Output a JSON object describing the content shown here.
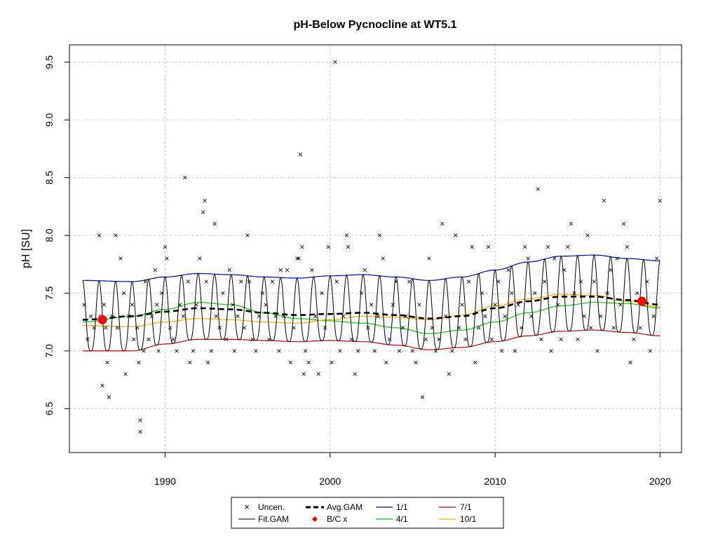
{
  "chart_data": {
    "type": "line",
    "title": "pH-Below Pycnocline at WT5.1",
    "xlabel": "",
    "ylabel": "pH [SU]",
    "xlim": [
      1984.2,
      2021.3
    ],
    "ylim": [
      6.12,
      9.65
    ],
    "x_ticks": [
      1990,
      2000,
      2010,
      2020
    ],
    "x_tick_labels": [
      "1990",
      "2000",
      "2010",
      "2020"
    ],
    "y_ticks": [
      6.5,
      7.0,
      7.5,
      8.0,
      8.5,
      9.0,
      9.5
    ],
    "y_tick_labels": [
      "6.5",
      "7.0",
      "7.5",
      "8.0",
      "8.5",
      "9.0",
      "9.5"
    ],
    "grid": true,
    "legend_position": "bottom-center",
    "colors": {
      "uncen": "#4f5f7f",
      "fit": "#000000",
      "avg": "#000000",
      "bc": "#ff0000",
      "d1": "#0000cd",
      "d4": "#00cd00",
      "d7": "#cd0000",
      "d10": "#ffa500"
    },
    "legend": {
      "uncen": "Uncen.",
      "fit": "Fit.GAM",
      "avg": "Avg.GAM",
      "bc": "B/C x",
      "d1": "1/1",
      "d4": "4/1",
      "d7": "7/1",
      "d10": "10/1"
    },
    "seasonal_curves": {
      "x": [
        1985,
        1988,
        1990,
        1992,
        1994,
        1996,
        1998,
        2000,
        2002,
        2004,
        2006,
        2008,
        2010,
        2012,
        2014,
        2016,
        2018,
        2020
      ],
      "d1": [
        7.61,
        7.6,
        7.64,
        7.67,
        7.66,
        7.64,
        7.63,
        7.65,
        7.66,
        7.64,
        7.61,
        7.64,
        7.7,
        7.77,
        7.82,
        7.83,
        7.8,
        7.78
      ],
      "d4": [
        7.25,
        7.3,
        7.36,
        7.42,
        7.4,
        7.33,
        7.28,
        7.26,
        7.24,
        7.2,
        7.15,
        7.18,
        7.25,
        7.33,
        7.39,
        7.42,
        7.41,
        7.37
      ],
      "d7": [
        7.0,
        7.0,
        7.06,
        7.1,
        7.1,
        7.09,
        7.08,
        7.09,
        7.08,
        7.05,
        7.01,
        7.03,
        7.08,
        7.13,
        7.17,
        7.18,
        7.16,
        7.13
      ],
      "d10": [
        7.22,
        7.21,
        7.25,
        7.28,
        7.27,
        7.25,
        7.24,
        7.27,
        7.3,
        7.29,
        7.27,
        7.31,
        7.39,
        7.45,
        7.49,
        7.48,
        7.43,
        7.38
      ],
      "avg": [
        7.27,
        7.3,
        7.34,
        7.37,
        7.36,
        7.33,
        7.31,
        7.32,
        7.33,
        7.31,
        7.28,
        7.3,
        7.37,
        7.43,
        7.47,
        7.47,
        7.44,
        7.4
      ]
    },
    "bc_points": [
      {
        "x": 1986.2,
        "y": 7.27
      },
      {
        "x": 2018.9,
        "y": 7.43
      }
    ],
    "observations": [
      [
        1985.1,
        7.4
      ],
      [
        1985.3,
        7.1
      ],
      [
        1985.5,
        7.3
      ],
      [
        1985.7,
        7.2
      ],
      [
        1986.0,
        8.0
      ],
      [
        1986.1,
        7.3
      ],
      [
        1986.2,
        6.7
      ],
      [
        1986.3,
        7.4
      ],
      [
        1986.4,
        7.2
      ],
      [
        1986.5,
        6.9
      ],
      [
        1986.6,
        6.6
      ],
      [
        1986.8,
        7.3
      ],
      [
        1987.0,
        8.0
      ],
      [
        1987.1,
        7.2
      ],
      [
        1987.3,
        7.8
      ],
      [
        1987.5,
        7.5
      ],
      [
        1987.6,
        6.8
      ],
      [
        1987.8,
        7.3
      ],
      [
        1988.0,
        7.4
      ],
      [
        1988.1,
        7.1
      ],
      [
        1988.3,
        7.2
      ],
      [
        1988.4,
        6.9
      ],
      [
        1988.5,
        6.3
      ],
      [
        1988.5,
        6.4
      ],
      [
        1988.7,
        7.0
      ],
      [
        1988.8,
        7.6
      ],
      [
        1989.0,
        7.1
      ],
      [
        1989.2,
        7.3
      ],
      [
        1989.4,
        7.7
      ],
      [
        1989.5,
        7.4
      ],
      [
        1989.6,
        7.0
      ],
      [
        1989.8,
        7.5
      ],
      [
        1990.0,
        7.9
      ],
      [
        1990.1,
        7.8
      ],
      [
        1990.3,
        7.2
      ],
      [
        1990.5,
        7.1
      ],
      [
        1990.7,
        7.0
      ],
      [
        1990.9,
        7.4
      ],
      [
        1991.1,
        7.3
      ],
      [
        1991.2,
        8.5
      ],
      [
        1991.4,
        7.6
      ],
      [
        1991.5,
        6.9
      ],
      [
        1991.7,
        7.0
      ],
      [
        1991.9,
        7.4
      ],
      [
        1992.1,
        7.8
      ],
      [
        1992.3,
        8.2
      ],
      [
        1992.4,
        8.3
      ],
      [
        1992.5,
        7.6
      ],
      [
        1992.6,
        6.9
      ],
      [
        1992.8,
        7.0
      ],
      [
        1993.0,
        8.1
      ],
      [
        1993.1,
        7.3
      ],
      [
        1993.3,
        7.2
      ],
      [
        1993.5,
        7.5
      ],
      [
        1993.7,
        7.1
      ],
      [
        1993.9,
        7.7
      ],
      [
        1994.1,
        7.4
      ],
      [
        1994.2,
        7.0
      ],
      [
        1994.4,
        7.3
      ],
      [
        1994.6,
        7.6
      ],
      [
        1994.8,
        7.2
      ],
      [
        1995.0,
        8.0
      ],
      [
        1995.1,
        7.6
      ],
      [
        1995.3,
        7.1
      ],
      [
        1995.5,
        7.0
      ],
      [
        1995.7,
        7.3
      ],
      [
        1995.9,
        7.5
      ],
      [
        1996.1,
        7.4
      ],
      [
        1996.3,
        7.1
      ],
      [
        1996.5,
        7.6
      ],
      [
        1996.7,
        7.3
      ],
      [
        1996.9,
        7.0
      ],
      [
        1997.0,
        7.7
      ],
      [
        1997.2,
        7.3
      ],
      [
        1997.4,
        7.7
      ],
      [
        1997.6,
        6.9
      ],
      [
        1997.8,
        7.2
      ],
      [
        1998.0,
        7.8
      ],
      [
        1998.1,
        7.8
      ],
      [
        1998.2,
        8.7
      ],
      [
        1998.3,
        7.9
      ],
      [
        1998.4,
        6.8
      ],
      [
        1998.5,
        7.0
      ],
      [
        1998.7,
        6.9
      ],
      [
        1998.9,
        7.7
      ],
      [
        1999.1,
        7.3
      ],
      [
        1999.3,
        6.8
      ],
      [
        1999.5,
        7.5
      ],
      [
        1999.7,
        7.2
      ],
      [
        1999.9,
        7.9
      ],
      [
        2000.1,
        6.9
      ],
      [
        2000.3,
        9.5
      ],
      [
        2000.4,
        7.6
      ],
      [
        2000.6,
        7.0
      ],
      [
        2000.8,
        7.3
      ],
      [
        2001.0,
        8.0
      ],
      [
        2001.1,
        7.9
      ],
      [
        2001.3,
        7.1
      ],
      [
        2001.5,
        6.8
      ],
      [
        2001.7,
        7.0
      ],
      [
        2001.9,
        7.5
      ],
      [
        2002.1,
        7.7
      ],
      [
        2002.3,
        7.2
      ],
      [
        2002.5,
        7.4
      ],
      [
        2002.7,
        7.0
      ],
      [
        2002.9,
        7.3
      ],
      [
        2003.0,
        8.0
      ],
      [
        2003.2,
        7.8
      ],
      [
        2003.4,
        6.9
      ],
      [
        2003.6,
        7.1
      ],
      [
        2003.8,
        7.4
      ],
      [
        2004.0,
        7.6
      ],
      [
        2004.2,
        7.0
      ],
      [
        2004.4,
        7.2
      ],
      [
        2004.6,
        7.3
      ],
      [
        2004.8,
        7.6
      ],
      [
        2005.0,
        7.0
      ],
      [
        2005.2,
        6.9
      ],
      [
        2005.4,
        7.4
      ],
      [
        2005.6,
        6.6
      ],
      [
        2005.8,
        7.1
      ],
      [
        2006.0,
        7.8
      ],
      [
        2006.2,
        7.2
      ],
      [
        2006.4,
        7.0
      ],
      [
        2006.6,
        7.1
      ],
      [
        2006.8,
        8.1
      ],
      [
        2007.0,
        7.3
      ],
      [
        2007.2,
        6.8
      ],
      [
        2007.4,
        7.0
      ],
      [
        2007.6,
        8.0
      ],
      [
        2007.8,
        7.2
      ],
      [
        2008.0,
        7.4
      ],
      [
        2008.2,
        7.1
      ],
      [
        2008.4,
        7.6
      ],
      [
        2008.6,
        7.9
      ],
      [
        2008.8,
        6.9
      ],
      [
        2009.0,
        7.2
      ],
      [
        2009.2,
        7.5
      ],
      [
        2009.4,
        7.3
      ],
      [
        2009.6,
        7.9
      ],
      [
        2009.8,
        7.1
      ],
      [
        2010.0,
        7.4
      ],
      [
        2010.2,
        7.6
      ],
      [
        2010.4,
        7.0
      ],
      [
        2010.6,
        7.3
      ],
      [
        2010.8,
        7.7
      ],
      [
        2011.0,
        7.5
      ],
      [
        2011.2,
        7.0
      ],
      [
        2011.4,
        7.4
      ],
      [
        2011.6,
        7.2
      ],
      [
        2011.8,
        7.9
      ],
      [
        2012.0,
        7.8
      ],
      [
        2012.2,
        7.3
      ],
      [
        2012.4,
        7.5
      ],
      [
        2012.6,
        8.4
      ],
      [
        2012.8,
        7.1
      ],
      [
        2013.0,
        7.6
      ],
      [
        2013.2,
        7.9
      ],
      [
        2013.4,
        7.0
      ],
      [
        2013.6,
        7.8
      ],
      [
        2013.8,
        7.4
      ],
      [
        2014.0,
        7.1
      ],
      [
        2014.2,
        7.7
      ],
      [
        2014.4,
        7.9
      ],
      [
        2014.6,
        8.1
      ],
      [
        2014.8,
        7.5
      ],
      [
        2015.0,
        7.1
      ],
      [
        2015.2,
        7.6
      ],
      [
        2015.4,
        7.3
      ],
      [
        2015.6,
        8.0
      ],
      [
        2015.8,
        7.2
      ],
      [
        2016.0,
        7.6
      ],
      [
        2016.2,
        7.0
      ],
      [
        2016.4,
        7.3
      ],
      [
        2016.6,
        8.3
      ],
      [
        2016.8,
        7.5
      ],
      [
        2017.0,
        7.7
      ],
      [
        2017.2,
        7.2
      ],
      [
        2017.4,
        7.8
      ],
      [
        2017.6,
        7.4
      ],
      [
        2017.8,
        8.1
      ],
      [
        2018.0,
        7.9
      ],
      [
        2018.2,
        6.9
      ],
      [
        2018.4,
        7.1
      ],
      [
        2018.6,
        7.5
      ],
      [
        2018.8,
        7.2
      ],
      [
        2019.0,
        7.4
      ],
      [
        2019.2,
        7.6
      ],
      [
        2019.4,
        7.0
      ],
      [
        2019.6,
        7.3
      ],
      [
        2019.8,
        7.8
      ],
      [
        2020.0,
        8.3
      ]
    ]
  }
}
